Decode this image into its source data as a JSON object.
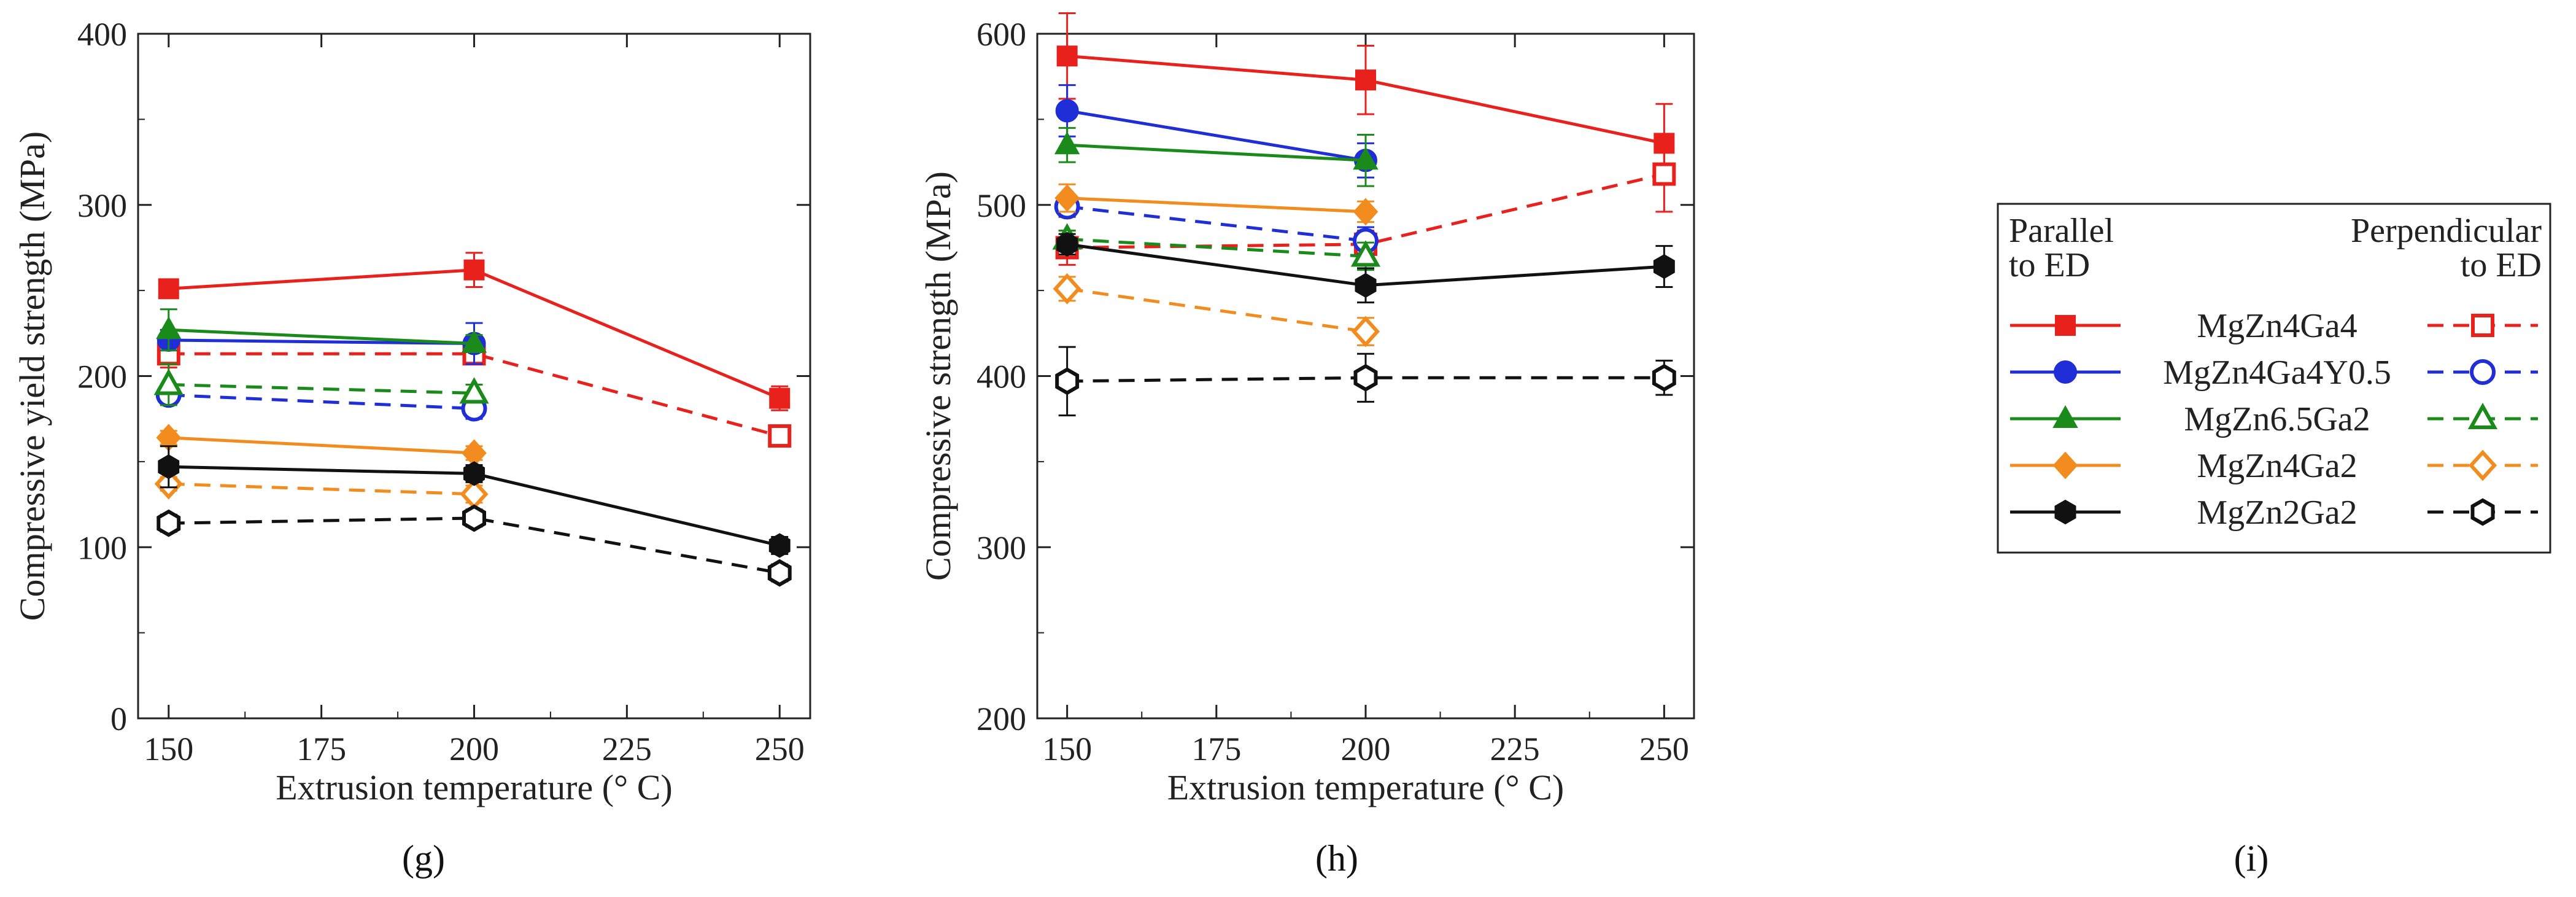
{
  "chart_data": [
    {
      "panel": "g",
      "type": "line",
      "xlabel": "Extrusion temperature (° C)",
      "ylabel": "Compressive yield strength (MPa)",
      "xlim": [
        145,
        255
      ],
      "ylim": [
        0,
        400
      ],
      "xticks": [
        150,
        175,
        200,
        225,
        250
      ],
      "yticks": [
        0,
        100,
        200,
        300,
        400
      ],
      "series": [
        {
          "alloy": "MgZn4Ga4",
          "orientation": "parallel",
          "color": "#e8211c",
          "marker": "square",
          "filled": true,
          "dashed": false,
          "x": [
            150,
            200,
            250
          ],
          "y": [
            251,
            262,
            187
          ],
          "err": [
            4,
            10,
            7
          ]
        },
        {
          "alloy": "MgZn4Ga4",
          "orientation": "perpendicular",
          "color": "#e8211c",
          "marker": "square",
          "filled": false,
          "dashed": true,
          "x": [
            150,
            200,
            250
          ],
          "y": [
            213,
            213,
            165
          ],
          "err": [
            8,
            6,
            5
          ]
        },
        {
          "alloy": "MgZn4Ga4Y0.5",
          "orientation": "parallel",
          "color": "#1f2ed6",
          "marker": "circle",
          "filled": true,
          "dashed": false,
          "x": [
            150,
            200
          ],
          "y": [
            221,
            219
          ],
          "err": [
            6,
            12
          ]
        },
        {
          "alloy": "MgZn4Ga4Y0.5",
          "orientation": "perpendicular",
          "color": "#1f2ed6",
          "marker": "circle",
          "filled": false,
          "dashed": true,
          "x": [
            150,
            200
          ],
          "y": [
            189,
            181
          ],
          "err": [
            5,
            6
          ]
        },
        {
          "alloy": "MgZn6.5Ga2",
          "orientation": "parallel",
          "color": "#1a8a1a",
          "marker": "triangle",
          "filled": true,
          "dashed": false,
          "x": [
            150,
            200
          ],
          "y": [
            227,
            219
          ],
          "err": [
            12,
            5
          ]
        },
        {
          "alloy": "MgZn6.5Ga2",
          "orientation": "perpendicular",
          "color": "#1a8a1a",
          "marker": "triangle",
          "filled": false,
          "dashed": true,
          "x": [
            150,
            200
          ],
          "y": [
            195,
            190
          ],
          "err": [
            12,
            5
          ]
        },
        {
          "alloy": "MgZn4Ga2",
          "orientation": "parallel",
          "color": "#f28c1e",
          "marker": "diamond",
          "filled": true,
          "dashed": false,
          "x": [
            150,
            200
          ],
          "y": [
            164,
            155
          ],
          "err": [
            4,
            4
          ]
        },
        {
          "alloy": "MgZn4Ga2",
          "orientation": "perpendicular",
          "color": "#f28c1e",
          "marker": "diamond",
          "filled": false,
          "dashed": true,
          "x": [
            150,
            200
          ],
          "y": [
            137,
            131
          ],
          "err": [
            4,
            5
          ]
        },
        {
          "alloy": "MgZn2Ga2",
          "orientation": "parallel",
          "color": "#111111",
          "marker": "hexagon",
          "filled": true,
          "dashed": false,
          "x": [
            150,
            200,
            250
          ],
          "y": [
            147,
            143,
            101
          ],
          "err": [
            12,
            5,
            5
          ]
        },
        {
          "alloy": "MgZn2Ga2",
          "orientation": "perpendicular",
          "color": "#111111",
          "marker": "hexagon",
          "filled": false,
          "dashed": true,
          "x": [
            150,
            200,
            250
          ],
          "y": [
            114,
            117,
            85
          ],
          "err": [
            5,
            5,
            5
          ]
        }
      ]
    },
    {
      "panel": "h",
      "type": "line",
      "xlabel": "Extrusion temperature (° C)",
      "ylabel": "Compressive strength (MPa)",
      "xlim": [
        145,
        255
      ],
      "ylim": [
        200,
        600
      ],
      "xticks": [
        150,
        175,
        200,
        225,
        250
      ],
      "yticks": [
        200,
        300,
        400,
        500,
        600
      ],
      "series": [
        {
          "alloy": "MgZn4Ga4",
          "orientation": "parallel",
          "color": "#e8211c",
          "marker": "square",
          "filled": true,
          "dashed": false,
          "x": [
            150,
            200,
            250
          ],
          "y": [
            587,
            573,
            536
          ],
          "err": [
            25,
            20,
            23
          ]
        },
        {
          "alloy": "MgZn4Ga4",
          "orientation": "perpendicular",
          "color": "#e8211c",
          "marker": "square",
          "filled": false,
          "dashed": true,
          "x": [
            150,
            200,
            250
          ],
          "y": [
            475,
            477,
            518
          ],
          "err": [
            10,
            8,
            22
          ]
        },
        {
          "alloy": "MgZn4Ga4Y0.5",
          "orientation": "parallel",
          "color": "#1f2ed6",
          "marker": "circle",
          "filled": true,
          "dashed": false,
          "x": [
            150,
            200
          ],
          "y": [
            555,
            526
          ],
          "err": [
            15,
            10
          ]
        },
        {
          "alloy": "MgZn4Ga4Y0.5",
          "orientation": "perpendicular",
          "color": "#1f2ed6",
          "marker": "circle",
          "filled": false,
          "dashed": true,
          "x": [
            150,
            200
          ],
          "y": [
            499,
            479
          ],
          "err": [
            6,
            8
          ]
        },
        {
          "alloy": "MgZn6.5Ga2",
          "orientation": "parallel",
          "color": "#1a8a1a",
          "marker": "triangle",
          "filled": true,
          "dashed": false,
          "x": [
            150,
            200
          ],
          "y": [
            535,
            526
          ],
          "err": [
            10,
            15
          ]
        },
        {
          "alloy": "MgZn6.5Ga2",
          "orientation": "perpendicular",
          "color": "#1a8a1a",
          "marker": "triangle",
          "filled": false,
          "dashed": true,
          "x": [
            150,
            200
          ],
          "y": [
            480,
            470
          ],
          "err": [
            5,
            8
          ]
        },
        {
          "alloy": "MgZn4Ga2",
          "orientation": "parallel",
          "color": "#f28c1e",
          "marker": "diamond",
          "filled": true,
          "dashed": false,
          "x": [
            150,
            200
          ],
          "y": [
            504,
            496
          ],
          "err": [
            8,
            6
          ]
        },
        {
          "alloy": "MgZn4Ga2",
          "orientation": "perpendicular",
          "color": "#f28c1e",
          "marker": "diamond",
          "filled": false,
          "dashed": true,
          "x": [
            150,
            200
          ],
          "y": [
            451,
            426
          ],
          "err": [
            7,
            8
          ]
        },
        {
          "alloy": "MgZn2Ga2",
          "orientation": "parallel",
          "color": "#111111",
          "marker": "hexagon",
          "filled": true,
          "dashed": false,
          "x": [
            150,
            200,
            250
          ],
          "y": [
            477,
            453,
            464
          ],
          "err": [
            6,
            10,
            12
          ]
        },
        {
          "alloy": "MgZn2Ga2",
          "orientation": "perpendicular",
          "color": "#111111",
          "marker": "hexagon",
          "filled": false,
          "dashed": true,
          "x": [
            150,
            200,
            250
          ],
          "y": [
            397,
            399,
            399
          ],
          "err": [
            20,
            14,
            10
          ]
        }
      ]
    }
  ],
  "legend": {
    "header_left": [
      "Parallel",
      "to ED"
    ],
    "header_right": [
      "Perpendicular",
      "to ED"
    ],
    "entries": [
      "MgZn4Ga4",
      "MgZn4Ga4Y0.5",
      "MgZn6.5Ga2",
      "MgZn4Ga2",
      "MgZn2Ga2"
    ]
  },
  "panel_labels": [
    "(g)",
    "(h)",
    "(i)"
  ]
}
